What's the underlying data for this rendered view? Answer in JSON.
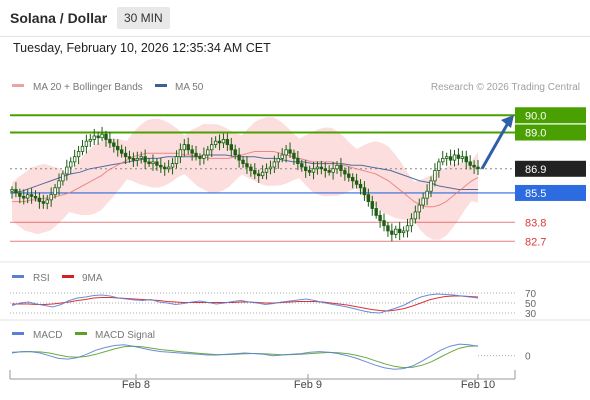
{
  "header": {
    "instrument": "Solana / Dollar",
    "interval": "30 MIN",
    "datetime": "Tuesday, February 10, 2026 12:35:34 AM CET"
  },
  "colors": {
    "bollinger_band": "#fcd3d3",
    "ma20": "#e57373",
    "ma50": "#3f5f96",
    "candle": "#1e5e14",
    "resistance": "#4aa000",
    "pivot": "#222222",
    "support_main": "#2d6be0",
    "support_minor": "#d93a3a",
    "rsi": "#5b7fd6",
    "rsi_ma": "#d81e1e",
    "macd": "#5b7fd6",
    "macd_signal": "#5ca02a",
    "arrow": "#2f5fa8"
  },
  "chart_data": [
    {
      "type": "candlestick",
      "panel": "price",
      "legend": [
        {
          "label": "MA 20 + Bollinger Bands",
          "color": "#f0a0a0"
        },
        {
          "label": "MA 50",
          "color": "#3f5f96"
        }
      ],
      "credit": "Research © 2026 Trading Central",
      "x_ticks": [
        "Feb 8",
        "Feb 9",
        "Feb 10"
      ],
      "ylim": [
        81.5,
        91.0
      ],
      "levels": [
        {
          "label": "90.0",
          "value": 90.0,
          "kind": "resistance"
        },
        {
          "label": "89.0",
          "value": 89.0,
          "kind": "resistance"
        },
        {
          "label": "86.9",
          "value": 86.9,
          "kind": "pivot"
        },
        {
          "label": "85.5",
          "value": 85.5,
          "kind": "support_main"
        },
        {
          "label": "83.8",
          "value": 83.8,
          "kind": "support_minor"
        },
        {
          "label": "82.7",
          "value": 82.7,
          "kind": "support_minor"
        }
      ],
      "close": [
        85.7,
        85.5,
        85.3,
        85.2,
        85.4,
        85.3,
        85.2,
        85.0,
        84.9,
        85.1,
        85.4,
        85.8,
        86.2,
        86.6,
        87.0,
        87.3,
        87.6,
        87.9,
        88.2,
        88.5,
        88.6,
        88.8,
        88.7,
        88.9,
        88.6,
        88.4,
        88.2,
        88.0,
        87.8,
        87.6,
        87.5,
        87.4,
        87.5,
        87.6,
        87.3,
        87.2,
        87.3,
        87.1,
        87.0,
        86.9,
        87.0,
        87.2,
        87.6,
        88.0,
        88.3,
        88.0,
        87.8,
        87.6,
        87.5,
        87.7,
        88.0,
        88.3,
        88.5,
        88.4,
        88.6,
        88.3,
        88.0,
        87.7,
        87.4,
        87.2,
        87.0,
        86.8,
        86.6,
        86.5,
        86.7,
        86.9,
        87.0,
        87.3,
        87.5,
        87.7,
        88.0,
        87.8,
        87.5,
        87.2,
        87.0,
        86.8,
        86.7,
        86.9,
        87.0,
        86.9,
        86.8,
        86.7,
        86.9,
        87.1,
        86.8,
        86.6,
        86.4,
        86.2,
        86.0,
        85.8,
        85.4,
        85.0,
        84.6,
        84.2,
        83.9,
        83.6,
        83.3,
        83.1,
        83.4,
        83.2,
        83.3,
        83.6,
        84.0,
        84.4,
        84.8,
        85.2,
        85.6,
        86.2,
        86.8,
        87.3,
        87.5,
        87.6,
        87.4,
        87.7,
        87.5,
        87.6,
        87.3,
        87.1,
        87.0,
        86.9
      ],
      "ma20": [
        85.0,
        85.0,
        85.0,
        85.1,
        85.1,
        85.2,
        85.2,
        85.3,
        85.4,
        85.5,
        85.7,
        85.9,
        86.1,
        86.3,
        86.5,
        86.8,
        87.0,
        87.2,
        87.4,
        87.6,
        87.7,
        87.8,
        87.8,
        87.8,
        87.8,
        87.8,
        87.8,
        87.7,
        87.7,
        87.6,
        87.6,
        87.5,
        87.5,
        87.5,
        87.5,
        87.6,
        87.7,
        87.8,
        87.9,
        87.9,
        87.9,
        87.9,
        87.8,
        87.7,
        87.6,
        87.5,
        87.4,
        87.3,
        87.3,
        87.3,
        87.3,
        87.2,
        87.1,
        87.0,
        86.9,
        86.8,
        86.7,
        86.6,
        86.4,
        86.2,
        85.9,
        85.6,
        85.3,
        85.0,
        84.8,
        84.7,
        84.7,
        84.8,
        85.0,
        85.3,
        85.6,
        85.9,
        86.2,
        86.4
      ],
      "ma50": [
        85.5,
        85.6,
        85.8,
        86.0,
        86.2,
        86.4,
        86.6,
        86.7,
        86.9,
        87.0,
        87.1,
        87.2,
        87.3,
        87.4,
        87.5,
        87.5,
        87.6,
        87.6,
        87.6,
        87.6,
        87.7,
        87.7,
        87.7,
        87.6,
        87.6,
        87.6,
        87.5,
        87.5,
        87.4,
        87.3,
        87.3,
        87.2,
        87.2,
        87.2,
        87.2,
        87.1,
        87.1,
        87.0,
        86.9,
        86.8,
        86.6,
        86.4,
        86.2,
        86.1,
        85.9,
        85.8,
        85.7,
        85.7,
        85.7
      ]
    },
    {
      "type": "line",
      "panel": "rsi",
      "series": [
        {
          "name": "RSI",
          "color": "#5b7fd6"
        },
        {
          "name": "9MA",
          "color": "#d81e1e"
        }
      ],
      "levels": [
        {
          "label": "70",
          "value": 70
        },
        {
          "label": "50",
          "value": 50
        },
        {
          "label": "30",
          "value": 30
        }
      ],
      "ylim": [
        20,
        80
      ],
      "rsi": [
        45,
        50,
        52,
        48,
        45,
        42,
        47,
        55,
        60,
        62,
        65,
        66,
        64,
        60,
        58,
        56,
        55,
        57,
        52,
        50,
        47,
        49,
        52,
        54,
        51,
        48,
        50,
        53,
        55,
        52,
        50,
        47,
        49,
        52,
        54,
        56,
        58,
        55,
        51,
        48,
        45,
        42,
        38,
        34,
        31,
        30,
        35,
        40,
        46,
        55,
        62,
        66,
        68,
        67,
        66,
        64,
        62,
        60
      ],
      "rsi_ma": [
        48,
        48,
        48,
        47,
        47,
        48,
        50,
        52,
        55,
        57,
        60,
        61,
        61,
        60,
        59,
        58,
        57,
        56,
        55,
        53,
        52,
        51,
        51,
        51,
        51,
        51,
        51,
        51,
        52,
        52,
        51,
        50,
        50,
        51,
        52,
        53,
        53,
        53,
        52,
        50,
        48,
        46,
        43,
        40,
        37,
        35,
        34,
        36,
        39,
        44,
        50,
        56,
        60,
        63,
        64,
        64,
        63,
        62
      ]
    },
    {
      "type": "line",
      "panel": "macd",
      "series": [
        {
          "name": "MACD",
          "color": "#5b7fd6"
        },
        {
          "name": "MACD Signal",
          "color": "#5ca02a"
        }
      ],
      "levels": [
        {
          "label": "0",
          "value": 0
        }
      ],
      "ylim": [
        -1.2,
        1.3
      ],
      "macd": [
        0.2,
        0.3,
        0.3,
        0.2,
        0.0,
        -0.2,
        -0.25,
        -0.15,
        0.1,
        0.4,
        0.6,
        0.75,
        0.8,
        0.7,
        0.55,
        0.4,
        0.3,
        0.25,
        0.2,
        0.15,
        0.1,
        0.05,
        0.05,
        0.1,
        0.15,
        0.2,
        0.15,
        0.1,
        0.0,
        0.05,
        0.1,
        0.15,
        0.25,
        0.3,
        0.25,
        0.15,
        0.0,
        -0.2,
        -0.45,
        -0.7,
        -0.9,
        -1.0,
        -0.95,
        -0.75,
        -0.4,
        0.0,
        0.4,
        0.7,
        0.85,
        0.8,
        0.7
      ],
      "macd_signal": [
        0.25,
        0.28,
        0.3,
        0.28,
        0.2,
        0.05,
        -0.08,
        -0.12,
        -0.05,
        0.1,
        0.3,
        0.5,
        0.65,
        0.7,
        0.65,
        0.55,
        0.45,
        0.38,
        0.3,
        0.24,
        0.18,
        0.12,
        0.08,
        0.08,
        0.1,
        0.14,
        0.16,
        0.14,
        0.1,
        0.07,
        0.08,
        0.1,
        0.15,
        0.2,
        0.24,
        0.22,
        0.15,
        0.02,
        -0.15,
        -0.38,
        -0.6,
        -0.78,
        -0.88,
        -0.85,
        -0.7,
        -0.45,
        -0.1,
        0.25,
        0.55,
        0.7,
        0.72
      ]
    }
  ]
}
